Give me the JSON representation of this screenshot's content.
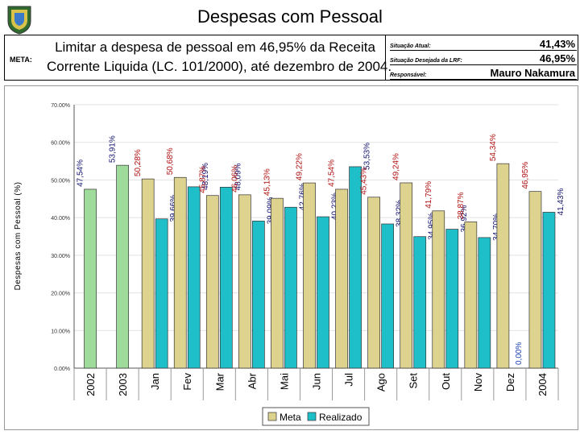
{
  "header": {
    "title": "Despesas com Pessoal"
  },
  "info": {
    "meta_label": "META:",
    "goal_line1": "Limitar a despesa de pessoal em 46,95% da Receita",
    "goal_line2": "Corrente Liquida (LC. 101/2000), até dezembro de 2004.",
    "rows": [
      {
        "label": "Situação Atual:",
        "value": "41,43%"
      },
      {
        "label": "Situação Desejada da LRF:",
        "value": "46,95%"
      },
      {
        "label": "Responsável:",
        "value": "Mauro Nakamura"
      }
    ]
  },
  "colors": {
    "meta": "#ddd38e",
    "realizado": "#1fbfca",
    "first_bars": "#9fdc9c",
    "meta_label": "#b01010",
    "realizado_label": "#101070"
  },
  "chart_data": {
    "type": "bar",
    "title": "",
    "ylabel": "Despesas com Pessoal (%)",
    "xlabel": "",
    "ylim": [
      0,
      70
    ],
    "ytick_labels": [
      "0.00%",
      "10.00%",
      "20.00%",
      "30.00%",
      "40.00%",
      "50.00%",
      "60.00%",
      "70.00%"
    ],
    "categories": [
      "2002",
      "2003",
      "Jan",
      "Fev",
      "Mar",
      "Abr",
      "Mai",
      "Jun",
      "Jul",
      "Ago",
      "Set",
      "Out",
      "Nov",
      "Dez",
      "2004"
    ],
    "series": [
      {
        "name": "Meta",
        "values": [
          null,
          null,
          50.28,
          50.68,
          45.87,
          46.06,
          45.13,
          49.22,
          47.54,
          45.43,
          49.24,
          41.79,
          38.87,
          54.34,
          46.95
        ],
        "labels": [
          "",
          "",
          "50,28%",
          "50,68%",
          "45,87%",
          "46,06%",
          "45,13%",
          "49,22%",
          "47,54%",
          "45,43%",
          "49,24%",
          "41,79%",
          "38,87%",
          "54,34%",
          "46,95%"
        ]
      },
      {
        "name": "Realizado",
        "values": [
          47.54,
          53.91,
          39.66,
          48.19,
          48.09,
          39.09,
          42.76,
          40.23,
          53.53,
          38.32,
          34.95,
          36.92,
          34.7,
          0.0,
          41.43
        ],
        "labels": [
          "47,54%",
          "53,91%",
          "39,66%",
          "48,19%",
          "48,09%",
          "39,09%",
          "42,76%",
          "40,23%",
          "53,53%",
          "38,32%",
          "34,95%",
          "36,92%",
          "34,70%",
          "0,00%",
          "41,43%"
        ]
      }
    ],
    "legend": [
      "Meta",
      "Realizado"
    ],
    "legend_position": "bottom"
  }
}
